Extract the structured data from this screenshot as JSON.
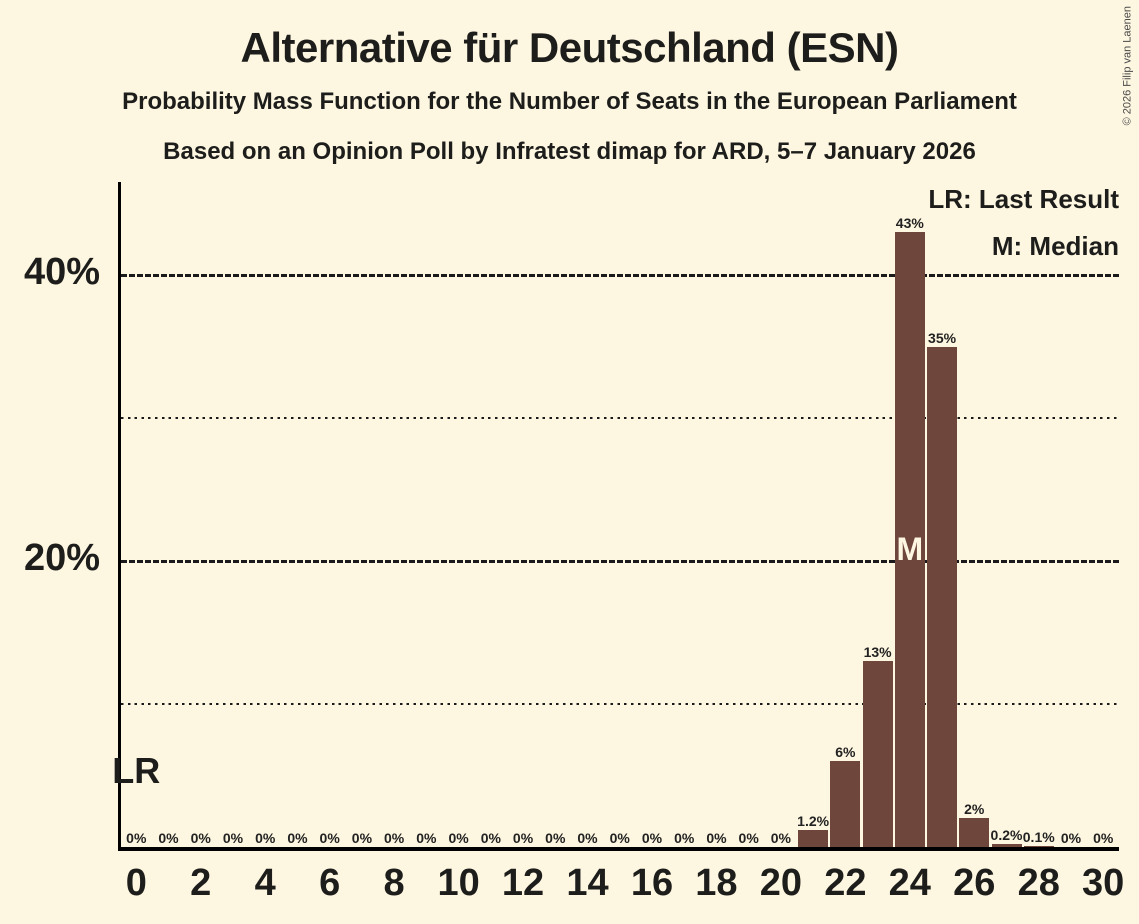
{
  "header": {
    "title": "Alternative für Deutschland (ESN)",
    "subtitle1": "Probability Mass Function for the Number of Seats in the European Parliament",
    "subtitle2": "Based on an Opinion Poll by Infratest dimap for ARD, 5–7 January 2026"
  },
  "legend": {
    "lr_label": "LR: Last Result",
    "m_label": "M: Median"
  },
  "annotations": {
    "lr_label": "LR",
    "median_label": "M"
  },
  "copyright": "© 2026 Filip van Laenen",
  "colors": {
    "background": "#fdf6e0",
    "bar": "#6e463c",
    "text": "#1d1d1b",
    "grid": "#1a1a1a",
    "copyright_text": "#4a4a4a"
  },
  "chart_data": {
    "type": "bar",
    "title": "Alternative für Deutschland (ESN)",
    "subtitle": "Probability Mass Function for the Number of Seats in the European Parliament",
    "source": "Based on an Opinion Poll by Infratest dimap for ARD, 5–7 January 2026",
    "x": [
      0,
      1,
      2,
      3,
      4,
      5,
      6,
      7,
      8,
      9,
      10,
      11,
      12,
      13,
      14,
      15,
      16,
      17,
      18,
      19,
      20,
      21,
      22,
      23,
      24,
      25,
      26,
      27,
      28,
      29,
      30
    ],
    "values": [
      0,
      0,
      0,
      0,
      0,
      0,
      0,
      0,
      0,
      0,
      0,
      0,
      0,
      0,
      0,
      0,
      0,
      0,
      0,
      0,
      0,
      1.2,
      6,
      13,
      43,
      35,
      2,
      0.2,
      0.1,
      0,
      0
    ],
    "bar_labels": [
      "0%",
      "0%",
      "0%",
      "0%",
      "0%",
      "0%",
      "0%",
      "0%",
      "0%",
      "0%",
      "0%",
      "0%",
      "0%",
      "0%",
      "0%",
      "0%",
      "0%",
      "0%",
      "0%",
      "0%",
      "0%",
      "1.2%",
      "6%",
      "13%",
      "43%",
      "35%",
      "2%",
      "0.2%",
      "0.1%",
      "0%",
      "0%"
    ],
    "xticks": [
      0,
      2,
      4,
      6,
      8,
      10,
      12,
      14,
      16,
      18,
      20,
      22,
      24,
      26,
      28,
      30
    ],
    "gridlines": [
      {
        "percent": 10,
        "style": "dotted",
        "label": ""
      },
      {
        "percent": 20,
        "style": "solid",
        "label": "20%"
      },
      {
        "percent": 30,
        "style": "dotted",
        "label": ""
      },
      {
        "percent": 40,
        "style": "solid",
        "label": "40%"
      }
    ],
    "ylim_percent": [
      0,
      46
    ],
    "grid": "horizontal-only",
    "legend_position": "top-right",
    "median_seat": 24,
    "last_result_seat": 0
  }
}
